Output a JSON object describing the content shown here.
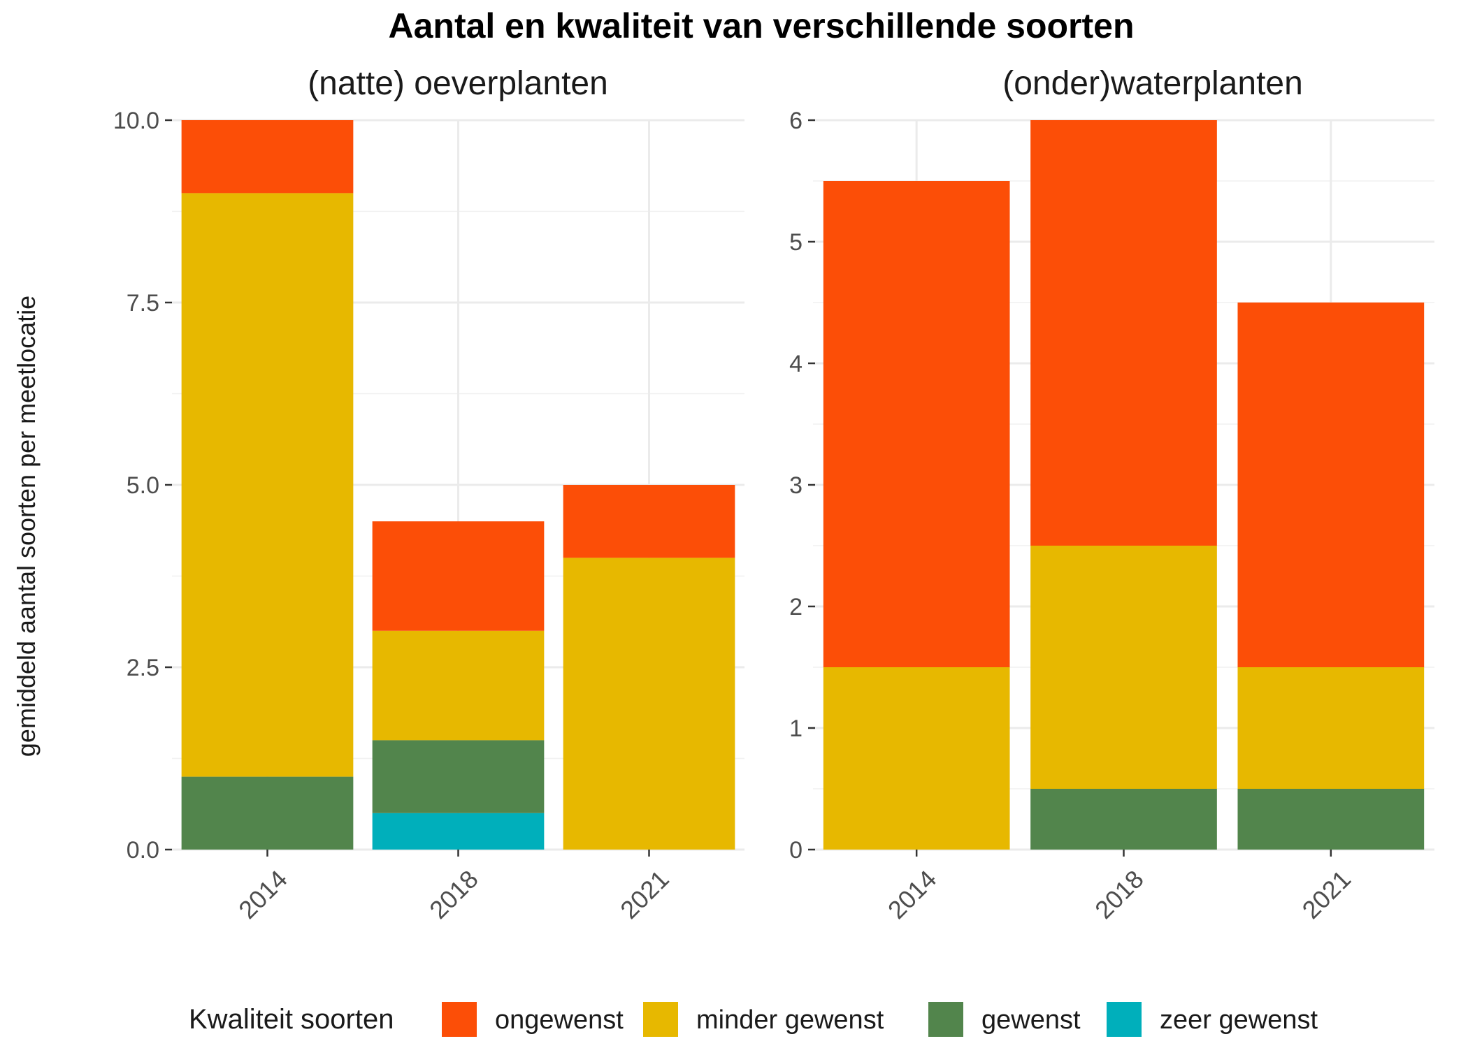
{
  "chart_data": {
    "type": "bar",
    "stacked": true,
    "title": "Aantal en kwaliteit van verschillende soorten",
    "ylabel": "gemiddeld aantal soorten per meetlocatie",
    "legend": {
      "title": "Kwaliteit soorten",
      "placement": "bottom",
      "entries": [
        {
          "label": "ongewenst",
          "color": "#FC4E07"
        },
        {
          "label": "minder gewenst",
          "color": "#E7B800"
        },
        {
          "label": "gewenst",
          "color": "#52854C"
        },
        {
          "label": "zeer gewenst",
          "color": "#00AFBB"
        }
      ]
    },
    "grid": true,
    "panels": [
      {
        "title": "(natte) oeverplanten",
        "categories": [
          "2014",
          "2018",
          "2021"
        ],
        "ylim": [
          0,
          10
        ],
        "yticks": [
          "0.0",
          "2.5",
          "5.0",
          "7.5",
          "10.0"
        ],
        "series": [
          {
            "name": "zeer gewenst",
            "color": "#00AFBB",
            "values": [
              0,
              0.5,
              0
            ]
          },
          {
            "name": "gewenst",
            "color": "#52854C",
            "values": [
              1,
              1,
              0
            ]
          },
          {
            "name": "minder gewenst",
            "color": "#E7B800",
            "values": [
              8,
              1.5,
              4
            ]
          },
          {
            "name": "ongewenst",
            "color": "#FC4E07",
            "values": [
              1,
              1.5,
              1
            ]
          }
        ]
      },
      {
        "title": "(onder)waterplanten",
        "categories": [
          "2014",
          "2018",
          "2021"
        ],
        "ylim": [
          0,
          6
        ],
        "yticks": [
          "0",
          "1",
          "2",
          "3",
          "4",
          "5",
          "6"
        ],
        "series": [
          {
            "name": "zeer gewenst",
            "color": "#00AFBB",
            "values": [
              0,
              0,
              0
            ]
          },
          {
            "name": "gewenst",
            "color": "#52854C",
            "values": [
              0,
              0.5,
              0.5
            ]
          },
          {
            "name": "minder gewenst",
            "color": "#E7B800",
            "values": [
              1.5,
              2,
              1
            ]
          },
          {
            "name": "ongewenst",
            "color": "#FC4E07",
            "values": [
              4,
              3.5,
              3
            ]
          }
        ]
      }
    ]
  }
}
